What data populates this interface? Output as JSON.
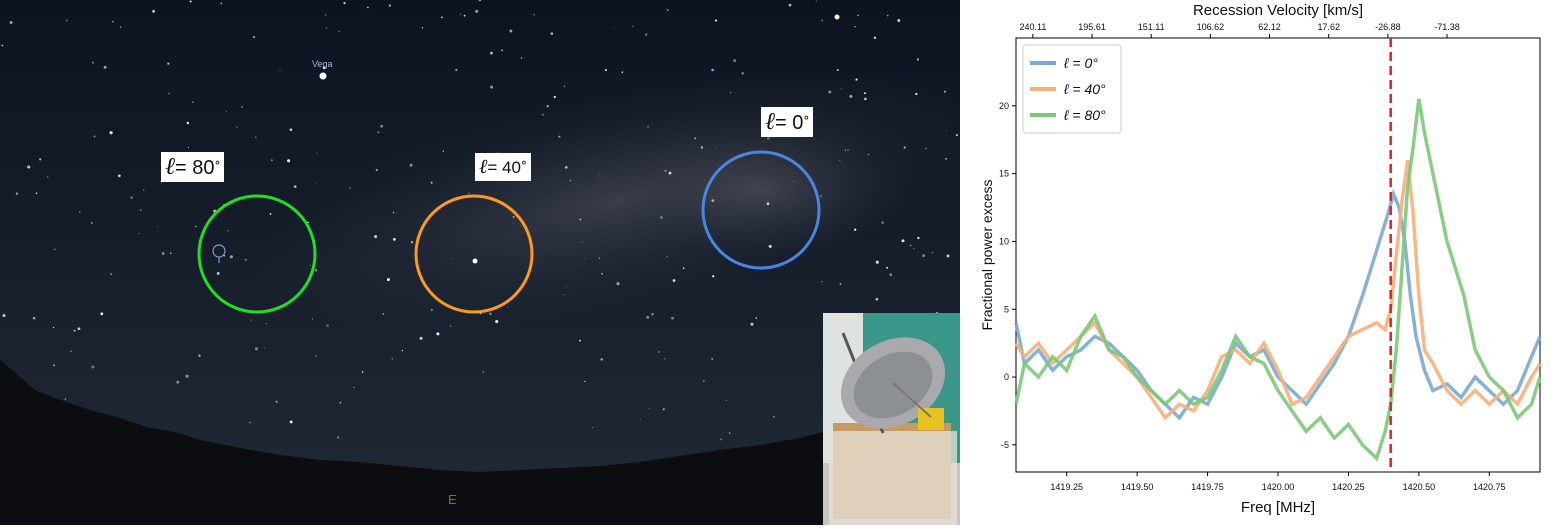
{
  "sky": {
    "star_label": "Vega",
    "compass_label": "E",
    "regions": [
      {
        "sym": "ℓ",
        "value": "= 80",
        "deg": "°",
        "color": "#22dd22"
      },
      {
        "sym": "ℓ",
        "value": "= 40",
        "deg": "°",
        "color": "#ff9a1e"
      },
      {
        "sym": "ℓ",
        "value": "= 0",
        "deg": "°",
        "color": "#4a86e0"
      }
    ]
  },
  "chart_data": {
    "type": "line",
    "xlabel": "Freq [MHz]",
    "ylabel": "Fractional power excess",
    "top_axis_label": "Recession Velocity [km/s]",
    "xlim": [
      1419.07,
      1420.93
    ],
    "ylim": [
      -7,
      25
    ],
    "x_ticks": [
      "1419.25",
      "1419.50",
      "1419.75",
      "1420.00",
      "1420.25",
      "1420.50",
      "1420.75"
    ],
    "y_ticks": [
      "-5",
      "0",
      "5",
      "10",
      "15",
      "20"
    ],
    "top_ticks": [
      "240.11",
      "195.61",
      "151.11",
      "106.62",
      "62.12",
      "17.62",
      "-26.88",
      "-71.38"
    ],
    "top_tick_freqs": [
      1419.13,
      1419.34,
      1419.55,
      1419.76,
      1419.97,
      1420.18,
      1420.39,
      1420.6
    ],
    "reference_line_x": 1420.4,
    "reference_line_color": "#dd2222",
    "legend_position": "top-left",
    "series": [
      {
        "name": "ℓ = 0°",
        "color": "#7aa8d4",
        "points": [
          [
            1419.07,
            4
          ],
          [
            1419.1,
            1
          ],
          [
            1419.15,
            2
          ],
          [
            1419.2,
            0.5
          ],
          [
            1419.25,
            1.5
          ],
          [
            1419.3,
            2
          ],
          [
            1419.35,
            3
          ],
          [
            1419.4,
            2.5
          ],
          [
            1419.45,
            1.5
          ],
          [
            1419.5,
            0.5
          ],
          [
            1419.55,
            -1
          ],
          [
            1419.6,
            -2
          ],
          [
            1419.65,
            -3
          ],
          [
            1419.7,
            -1.5
          ],
          [
            1419.75,
            -2
          ],
          [
            1419.8,
            0
          ],
          [
            1419.85,
            2.5
          ],
          [
            1419.9,
            1.5
          ],
          [
            1419.95,
            2
          ],
          [
            1420.0,
            0
          ],
          [
            1420.05,
            -1
          ],
          [
            1420.1,
            -2
          ],
          [
            1420.15,
            -0.5
          ],
          [
            1420.2,
            1
          ],
          [
            1420.25,
            3
          ],
          [
            1420.3,
            6
          ],
          [
            1420.33,
            8
          ],
          [
            1420.36,
            10
          ],
          [
            1420.39,
            12
          ],
          [
            1420.41,
            13.5
          ],
          [
            1420.43,
            12.5
          ],
          [
            1420.45,
            10
          ],
          [
            1420.47,
            6
          ],
          [
            1420.49,
            3
          ],
          [
            1420.52,
            0.5
          ],
          [
            1420.55,
            -1
          ],
          [
            1420.6,
            -0.5
          ],
          [
            1420.65,
            -1.5
          ],
          [
            1420.7,
            0
          ],
          [
            1420.75,
            -1
          ],
          [
            1420.8,
            -2
          ],
          [
            1420.85,
            -1
          ],
          [
            1420.9,
            1.5
          ],
          [
            1420.93,
            3
          ]
        ]
      },
      {
        "name": "ℓ = 40°",
        "color": "#f6b07a",
        "points": [
          [
            1419.07,
            2.5
          ],
          [
            1419.1,
            1.5
          ],
          [
            1419.15,
            2.5
          ],
          [
            1419.2,
            1
          ],
          [
            1419.25,
            2
          ],
          [
            1419.3,
            3
          ],
          [
            1419.35,
            4
          ],
          [
            1419.4,
            2
          ],
          [
            1419.45,
            1
          ],
          [
            1419.5,
            0
          ],
          [
            1419.55,
            -1.5
          ],
          [
            1419.6,
            -3
          ],
          [
            1419.65,
            -2
          ],
          [
            1419.7,
            -2.5
          ],
          [
            1419.75,
            -1
          ],
          [
            1419.8,
            1.5
          ],
          [
            1419.85,
            2
          ],
          [
            1419.9,
            1
          ],
          [
            1419.95,
            2.5
          ],
          [
            1420.0,
            0.5
          ],
          [
            1420.05,
            -2
          ],
          [
            1420.1,
            -1.5
          ],
          [
            1420.15,
            0
          ],
          [
            1420.2,
            1.5
          ],
          [
            1420.25,
            3
          ],
          [
            1420.3,
            3.5
          ],
          [
            1420.35,
            4
          ],
          [
            1420.38,
            3.5
          ],
          [
            1420.4,
            5
          ],
          [
            1420.42,
            9
          ],
          [
            1420.44,
            13
          ],
          [
            1420.46,
            16
          ],
          [
            1420.48,
            12
          ],
          [
            1420.5,
            6
          ],
          [
            1420.52,
            2
          ],
          [
            1420.55,
            1
          ],
          [
            1420.6,
            -1
          ],
          [
            1420.65,
            -2
          ],
          [
            1420.7,
            -1
          ],
          [
            1420.75,
            -2
          ],
          [
            1420.8,
            -1
          ],
          [
            1420.85,
            -2
          ],
          [
            1420.9,
            0
          ],
          [
            1420.93,
            1
          ]
        ]
      },
      {
        "name": "ℓ = 80°",
        "color": "#7cc87a",
        "points": [
          [
            1419.07,
            -2
          ],
          [
            1419.1,
            1
          ],
          [
            1419.15,
            0
          ],
          [
            1419.2,
            1.5
          ],
          [
            1419.25,
            0.5
          ],
          [
            1419.3,
            3
          ],
          [
            1419.35,
            4.5
          ],
          [
            1419.4,
            2
          ],
          [
            1419.45,
            1.5
          ],
          [
            1419.5,
            0
          ],
          [
            1419.55,
            -1
          ],
          [
            1419.6,
            -2
          ],
          [
            1419.65,
            -1
          ],
          [
            1419.7,
            -2
          ],
          [
            1419.75,
            -1.5
          ],
          [
            1419.8,
            0.5
          ],
          [
            1419.85,
            3
          ],
          [
            1419.9,
            1.5
          ],
          [
            1419.95,
            1
          ],
          [
            1420.0,
            -1
          ],
          [
            1420.05,
            -2.5
          ],
          [
            1420.1,
            -4
          ],
          [
            1420.15,
            -3
          ],
          [
            1420.2,
            -4.5
          ],
          [
            1420.25,
            -3.5
          ],
          [
            1420.3,
            -5
          ],
          [
            1420.35,
            -6
          ],
          [
            1420.38,
            -4
          ],
          [
            1420.4,
            -2
          ],
          [
            1420.42,
            2
          ],
          [
            1420.44,
            8
          ],
          [
            1420.46,
            14
          ],
          [
            1420.48,
            17
          ],
          [
            1420.5,
            20.5
          ],
          [
            1420.52,
            18
          ],
          [
            1420.55,
            15
          ],
          [
            1420.58,
            12
          ],
          [
            1420.6,
            10
          ],
          [
            1420.63,
            8
          ],
          [
            1420.66,
            6
          ],
          [
            1420.7,
            2
          ],
          [
            1420.75,
            0
          ],
          [
            1420.8,
            -1
          ],
          [
            1420.85,
            -3
          ],
          [
            1420.9,
            -2
          ],
          [
            1420.93,
            0
          ]
        ]
      }
    ]
  }
}
